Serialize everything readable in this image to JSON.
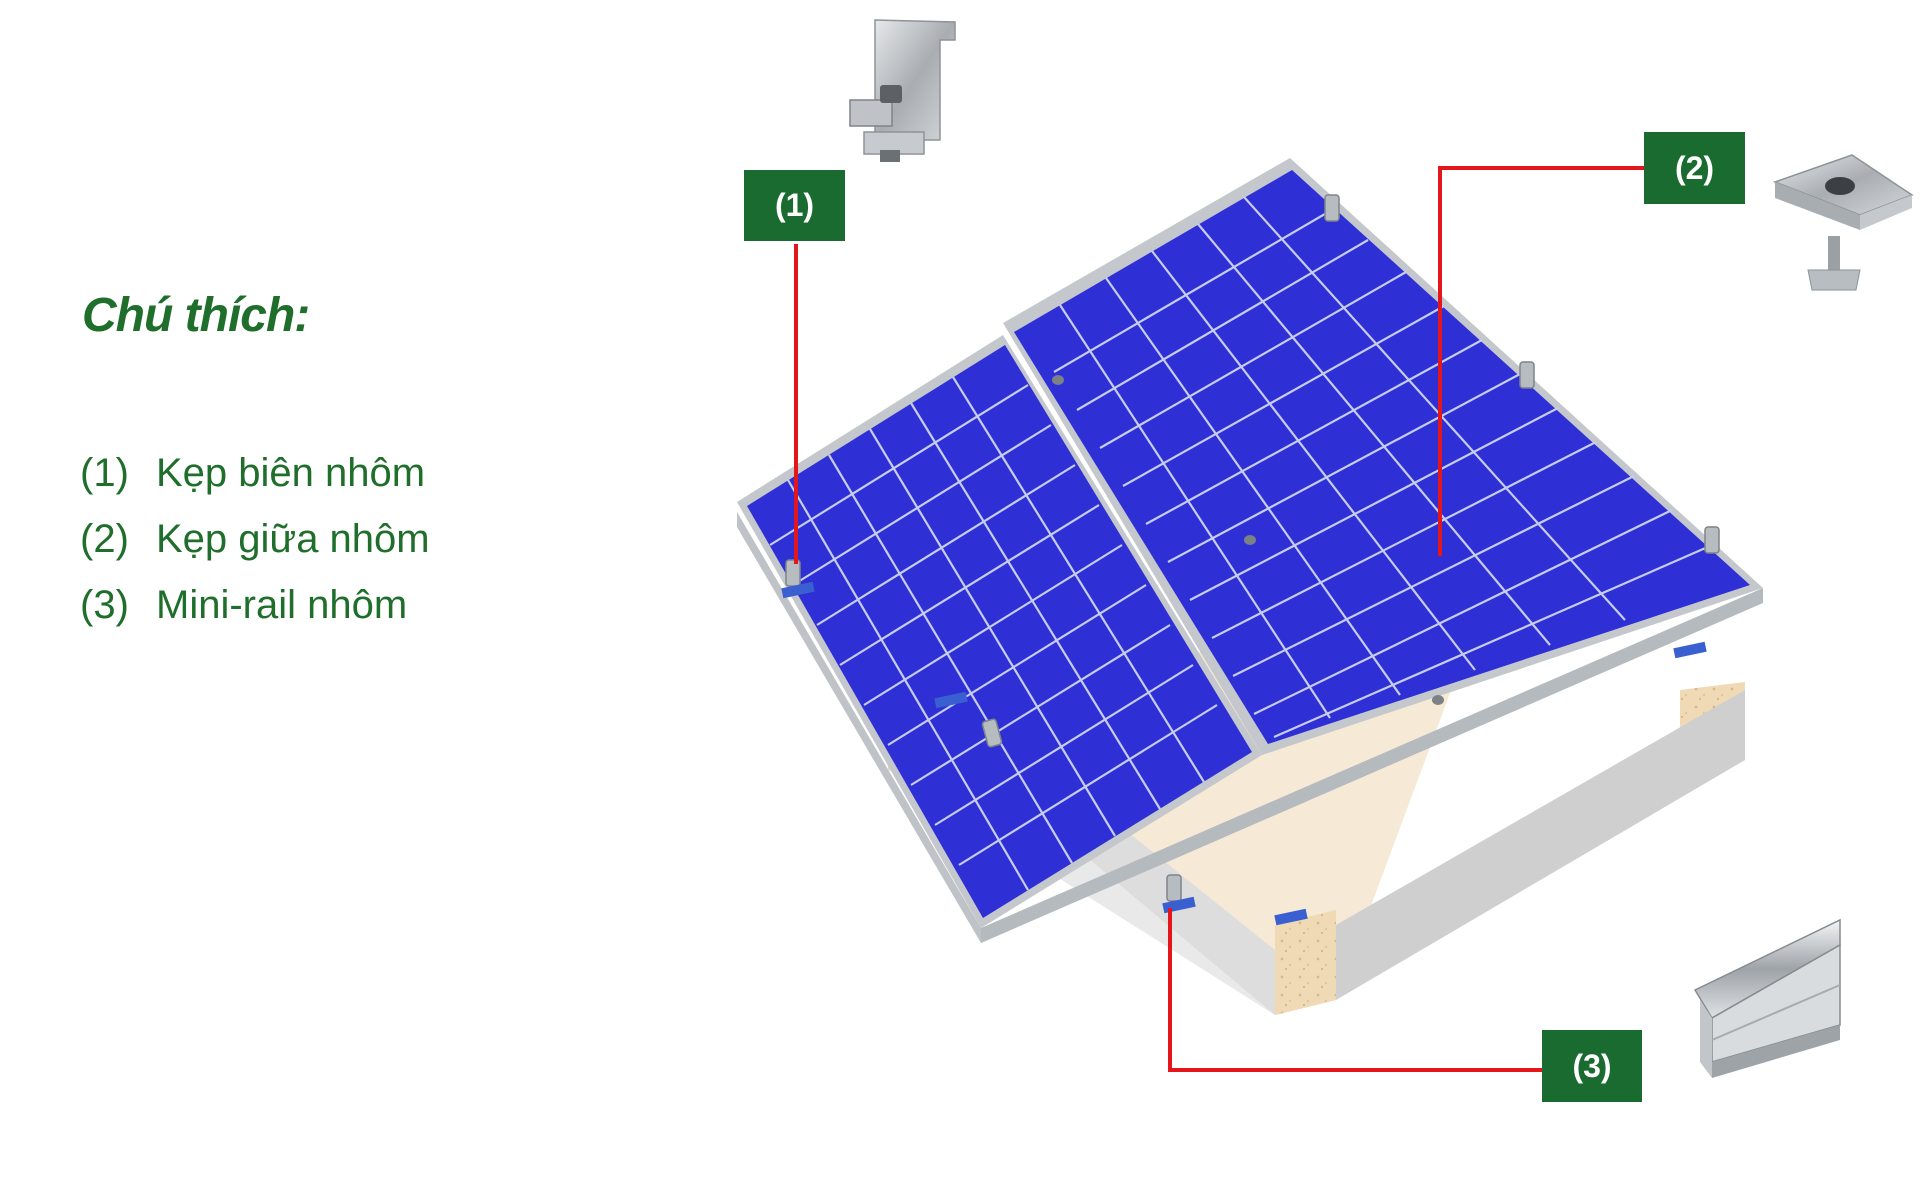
{
  "legend": {
    "title": "Chú thích:",
    "items": [
      {
        "num": "(1)",
        "label": "Kẹp biên nhôm"
      },
      {
        "num": "(2)",
        "label": "Kẹp giữa nhôm"
      },
      {
        "num": "(3)",
        "label": "Mini-rail nhôm"
      }
    ]
  },
  "callouts": [
    {
      "label": "(1)"
    },
    {
      "label": "(2)"
    },
    {
      "label": "(3)"
    }
  ],
  "colors": {
    "legend_text": "#1f6e2b",
    "callout_bg": "#1a6b2f",
    "callout_text": "#ffffff",
    "leader_line": "#e3161b",
    "panel_cell": "#2f2fd6",
    "panel_grid": "#c6cdf3",
    "frame": "#c4c8cc",
    "base_block": "#f0d9b5"
  }
}
